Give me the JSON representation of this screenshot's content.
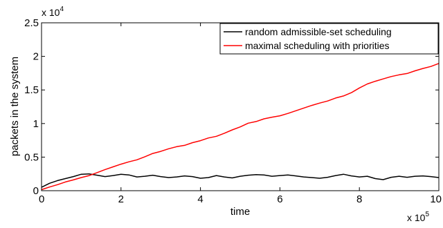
{
  "chart_data": {
    "type": "line",
    "xlabel": "time",
    "ylabel": "packets in the system",
    "xlim": [
      0,
      1000000
    ],
    "ylim": [
      0,
      25000
    ],
    "x_ticks": [
      0,
      200000,
      400000,
      600000,
      800000,
      1000000
    ],
    "x_tick_labels": [
      "0",
      "2",
      "4",
      "6",
      "8",
      "10"
    ],
    "y_ticks": [
      0,
      5000,
      10000,
      15000,
      20000,
      25000
    ],
    "y_tick_labels": [
      "0",
      "0.5",
      "1",
      "1.5",
      "2",
      "2.5"
    ],
    "x_multiplier": {
      "base": "x 10",
      "exponent": "5"
    },
    "y_multiplier": {
      "base": "x 10",
      "exponent": "4"
    },
    "grid": false,
    "legend_position": "top-right",
    "series": [
      {
        "name": "random admissible-set scheduling",
        "color": "#000000",
        "x": [
          0,
          20000,
          40000,
          60000,
          80000,
          100000,
          120000,
          140000,
          160000,
          180000,
          200000,
          220000,
          240000,
          260000,
          280000,
          300000,
          320000,
          340000,
          360000,
          380000,
          400000,
          420000,
          440000,
          460000,
          480000,
          500000,
          520000,
          540000,
          560000,
          580000,
          600000,
          620000,
          640000,
          660000,
          680000,
          700000,
          720000,
          740000,
          760000,
          780000,
          800000,
          820000,
          840000,
          860000,
          880000,
          900000,
          920000,
          940000,
          960000,
          980000,
          1000000
        ],
        "values": [
          500,
          1100,
          1500,
          1800,
          2100,
          2450,
          2500,
          2300,
          2100,
          2250,
          2450,
          2350,
          2050,
          2150,
          2300,
          2100,
          1950,
          2050,
          2200,
          2100,
          1850,
          1950,
          2250,
          2050,
          1900,
          2150,
          2300,
          2400,
          2350,
          2150,
          2250,
          2350,
          2200,
          2050,
          1950,
          1850,
          2000,
          2250,
          2450,
          2200,
          2050,
          2150,
          1800,
          1650,
          2000,
          2150,
          2000,
          2150,
          2200,
          2100,
          1950
        ]
      },
      {
        "name": "maximal scheduling with priorities",
        "color": "#ff0000",
        "x": [
          0,
          20000,
          40000,
          60000,
          80000,
          100000,
          120000,
          140000,
          160000,
          180000,
          200000,
          220000,
          240000,
          260000,
          280000,
          300000,
          320000,
          340000,
          360000,
          380000,
          400000,
          420000,
          440000,
          460000,
          480000,
          500000,
          520000,
          540000,
          560000,
          580000,
          600000,
          620000,
          640000,
          660000,
          680000,
          700000,
          720000,
          740000,
          760000,
          780000,
          800000,
          820000,
          840000,
          860000,
          880000,
          900000,
          920000,
          940000,
          960000,
          980000,
          1000000
        ],
        "values": [
          150,
          550,
          900,
          1300,
          1600,
          1950,
          2250,
          2700,
          3150,
          3550,
          3950,
          4300,
          4600,
          5050,
          5550,
          5850,
          6250,
          6550,
          6750,
          7150,
          7450,
          7850,
          8100,
          8550,
          9050,
          9500,
          10050,
          10300,
          10700,
          10950,
          11150,
          11500,
          11900,
          12300,
          12700,
          13050,
          13350,
          13800,
          14100,
          14600,
          15300,
          15900,
          16300,
          16650,
          17000,
          17250,
          17450,
          17850,
          18200,
          18500,
          18950
        ]
      }
    ]
  }
}
